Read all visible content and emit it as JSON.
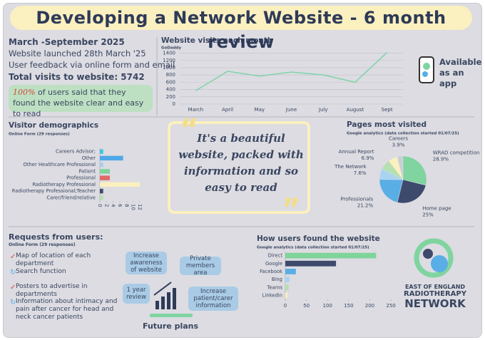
{
  "header": {
    "title": "Developing a Network Website - 6 month review"
  },
  "intro": {
    "period": "March -September 2025",
    "launch": "Website launched 28th March '25",
    "feedback": "User feedback via online form and email",
    "total": "Total visits to website: 5742",
    "satisfaction_pct": "100%",
    "satisfaction_text": " of users said that they found the website clear and easy to read"
  },
  "chart_data": [
    {
      "type": "line",
      "title": "Website visits each month",
      "y_label": "GoDaddy",
      "categories": [
        "March",
        "April",
        "May",
        "June",
        "July",
        "August",
        "Sept"
      ],
      "values": [
        370,
        900,
        770,
        880,
        800,
        600,
        1420
      ],
      "color": "#7fd4a8",
      "ylim": [
        0,
        1450
      ],
      "yticks": [
        0,
        200,
        400,
        600,
        800,
        1000,
        1200,
        1400
      ],
      "grid": true
    },
    {
      "type": "bar",
      "horizontal": true,
      "title": "Visitor demographics",
      "subtitle": "Online Form (29 responses)",
      "categories": [
        "Careers Advisor;",
        "Other",
        "Other Healthcare Professional",
        "Patient",
        "Professional",
        "Radiotherapy Professional",
        "Radiotherapy Professional;Teacher",
        "Carer/friend/relative"
      ],
      "values": [
        1,
        7,
        1,
        3,
        3,
        12,
        1,
        1
      ],
      "colors": [
        "#3fc3e0",
        "#4fa8e8",
        "#a9cfea",
        "#7fd49a",
        "#e06a6a",
        "#fbf0bf",
        "#3d4a6b",
        "#b5e0b0"
      ],
      "xlim": [
        0,
        12
      ],
      "xticks": [
        0,
        2,
        4,
        6,
        8,
        10,
        12
      ]
    },
    {
      "type": "pie",
      "title": "Pages most visited",
      "subtitle": "Google analytics (data collection started 01/07/25)",
      "categories": [
        "WRAD competition",
        "Home page",
        "Professionals",
        "The Network",
        "Annual Report",
        null,
        "Careers"
      ],
      "values": [
        28.9,
        25,
        21.2,
        7.6,
        6.9,
        6.5,
        3.9
      ],
      "value_labels": [
        "28.9%",
        "25%",
        "21.2%",
        "7.6%",
        "6.9%",
        null,
        "3.9%"
      ],
      "colors": [
        "#7fd4a0",
        "#3d4a6b",
        "#5aaee6",
        "#a8d4f0",
        "#b5e0b0",
        "#fbf0bf",
        "#c9cfd6"
      ]
    },
    {
      "type": "bar",
      "horizontal": true,
      "title": "How users found the website",
      "subtitle": "Google analytics (data collection started 01/07/25)",
      "categories": [
        "Direct",
        "Google",
        "Facebook",
        "Bing",
        "Teams",
        "Linkedin"
      ],
      "values": [
        215,
        120,
        25,
        10,
        8,
        5
      ],
      "colors": [
        "#7fd49a",
        "#3d4a6b",
        "#5aaee6",
        "#a8d4f0",
        "#b5e0b0",
        "#fbf0bf"
      ],
      "xlim": [
        0,
        260
      ],
      "xticks": [
        0,
        50,
        100,
        150,
        200,
        250
      ]
    }
  ],
  "app": {
    "text": "Available as an app"
  },
  "quote": {
    "text": "It's a beautiful website, packed with information and so easy to read"
  },
  "requests": {
    "title": "Requests from users:",
    "subtitle": "Online Form (29 responses)",
    "items": [
      "Map of location of each department",
      "Search function",
      "Posters to advertise in departments",
      "Information about intimacy and pain after cancer for head and neck cancer patients"
    ]
  },
  "future_plans": {
    "label": "Future plans",
    "items": [
      "Increase awareness of website",
      "Private members area",
      "1 year review",
      "Increase patient/carer information"
    ]
  },
  "logo": {
    "line1": "EAST OF ENGLAND",
    "line2": "RADIOTHERAPY",
    "line3": "NETWORK"
  }
}
